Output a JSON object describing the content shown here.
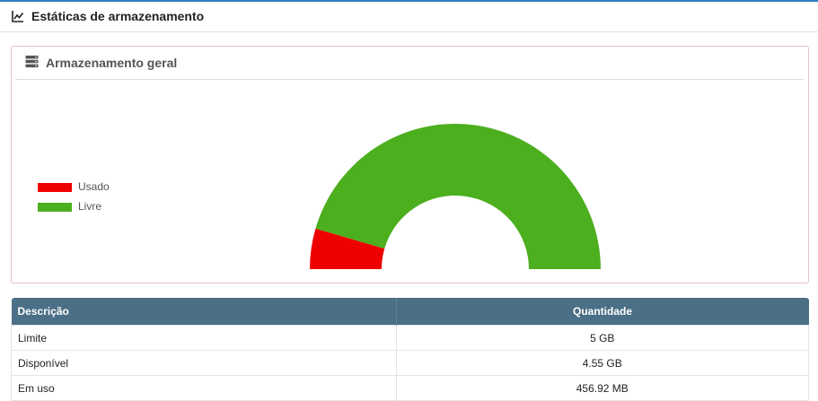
{
  "header": {
    "title": "Estáticas de armazenamento",
    "icon": "line-chart-icon"
  },
  "panel": {
    "title": "Armazenamento geral",
    "icon": "server-icon"
  },
  "legend": [
    {
      "label": "Usado",
      "color": "#ee0000"
    },
    {
      "label": "Livre",
      "color": "#4caf1e"
    }
  ],
  "chart_data": {
    "type": "pie",
    "variant": "half-donut",
    "series": [
      {
        "name": "Usado",
        "value": 456.92,
        "unit": "MB",
        "color": "#ee0000"
      },
      {
        "name": "Livre",
        "value": 4.55,
        "unit": "GB",
        "color": "#4caf1e"
      }
    ],
    "used_fraction": 0.09,
    "legend_position": "left"
  },
  "table": {
    "headers": [
      "Descrição",
      "Quantidade"
    ],
    "rows": [
      [
        "Limite",
        "5 GB"
      ],
      [
        "Disponível",
        "4.55 GB"
      ],
      [
        "Em uso",
        "456.92 MB"
      ]
    ]
  }
}
